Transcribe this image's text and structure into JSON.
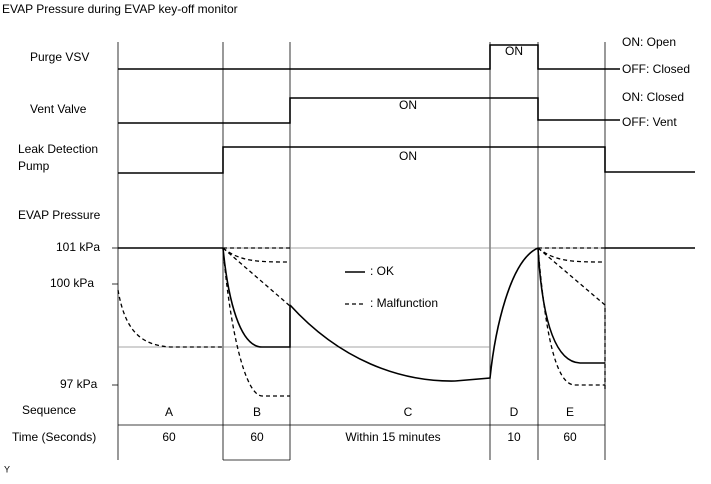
{
  "title": "EVAP Pressure during EVAP key-off monitor",
  "rows": {
    "purge_vsv": "Purge VSV",
    "vent_valve": "Vent Valve",
    "pump": [
      "Leak Detection",
      "Pump"
    ],
    "evap_pressure": "EVAP Pressure",
    "sequence": "Sequence",
    "time": "Time (Seconds)"
  },
  "pressure_labels": [
    "101 kPa",
    "100 kPa",
    "97 kPa"
  ],
  "state_labels": {
    "purge_on": "ON: Open",
    "purge_off": "OFF: Closed",
    "vent_on": "ON: Closed",
    "vent_off": "OFF: Vent"
  },
  "on_labels": [
    "ON",
    "ON",
    "ON"
  ],
  "legend": {
    "ok": ": OK",
    "malfunction": ": Malfunction"
  },
  "sequence": [
    "A",
    "B",
    "C",
    "D",
    "E"
  ],
  "times": [
    "60",
    "60",
    "Within 15 minutes",
    "10",
    "60"
  ],
  "footer": "Y"
}
